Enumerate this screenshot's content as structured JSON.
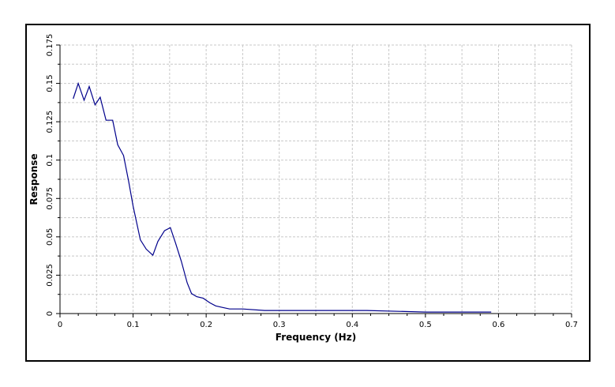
{
  "chart_data": {
    "type": "line",
    "title": "",
    "xlabel": "Frequency (Hz)",
    "ylabel": "Response",
    "xlim": [
      0,
      0.7
    ],
    "ylim": [
      0,
      0.175
    ],
    "xticks": [
      "0",
      "0.1",
      "0.2",
      "0.3",
      "0.4",
      "0.5",
      "0.6",
      "0.7"
    ],
    "yticks": [
      "0",
      "0.025",
      "0.05",
      "0.075",
      "0.1",
      "0.125",
      "0.15",
      "0.175"
    ],
    "x_tick_values": [
      0,
      0.1,
      0.2,
      0.3,
      0.4,
      0.5,
      0.6,
      0.7
    ],
    "y_tick_values": [
      0,
      0.025,
      0.05,
      0.075,
      0.1,
      0.125,
      0.15,
      0.175
    ],
    "grid": true,
    "series_color": "#00008b",
    "series": [
      {
        "x": [
          0.018,
          0.025,
          0.033,
          0.04,
          0.048,
          0.055,
          0.063,
          0.072,
          0.079,
          0.087,
          0.094,
          0.1,
          0.11,
          0.118,
          0.127,
          0.134,
          0.143,
          0.151,
          0.158,
          0.166,
          0.174,
          0.18,
          0.187,
          0.196,
          0.205,
          0.213,
          0.222,
          0.232,
          0.25,
          0.28,
          0.35,
          0.42,
          0.5,
          0.54,
          0.59
        ],
        "y": [
          0.14,
          0.15,
          0.139,
          0.148,
          0.136,
          0.141,
          0.126,
          0.126,
          0.11,
          0.103,
          0.086,
          0.07,
          0.048,
          0.042,
          0.038,
          0.047,
          0.054,
          0.056,
          0.046,
          0.034,
          0.02,
          0.013,
          0.011,
          0.01,
          0.007,
          0.005,
          0.004,
          0.003,
          0.003,
          0.002,
          0.002,
          0.002,
          0.001,
          0.001,
          0.001
        ]
      }
    ]
  }
}
